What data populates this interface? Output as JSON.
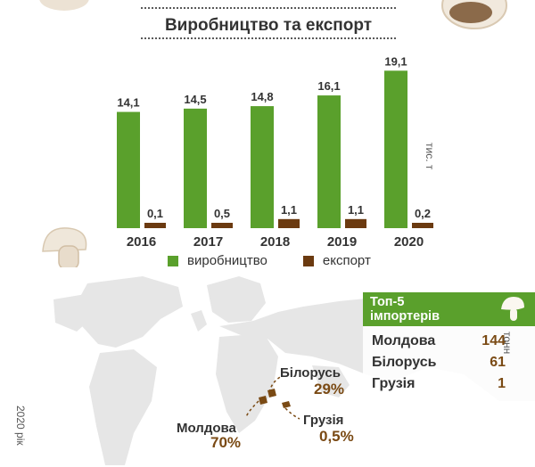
{
  "title": "Виробництво та експорт",
  "unit_label": "тис. т",
  "colors": {
    "production": "#5aa02c",
    "export": "#6b3a10",
    "map_land": "#e6e6e6",
    "map_highlight": "#7a4a14"
  },
  "legend": {
    "production": "виробництво",
    "export": "експорт"
  },
  "chart_data": {
    "type": "bar",
    "categories": [
      "2016",
      "2017",
      "2018",
      "2019",
      "2020"
    ],
    "series": [
      {
        "name": "виробництво",
        "values": [
          14.1,
          14.5,
          14.8,
          16.1,
          19.1
        ],
        "labels": [
          "14,1",
          "14,5",
          "14,8",
          "16,1",
          "19,1"
        ]
      },
      {
        "name": "експорт",
        "values": [
          0.1,
          0.5,
          1.1,
          1.1,
          0.2
        ],
        "labels": [
          "0,1",
          "0,5",
          "1,1",
          "1,1",
          "0,2"
        ]
      }
    ],
    "ylabel": "тис. т",
    "ylim": [
      0,
      20
    ],
    "grid": false,
    "legend_position": "bottom"
  },
  "importers": {
    "title_line1": "Топ-5",
    "title_line2": "імпортерів",
    "unit": "тонн",
    "rows": [
      {
        "country": "Молдова",
        "value": "144"
      },
      {
        "country": "Білорусь",
        "value": "61"
      },
      {
        "country": "Грузія",
        "value": "1"
      }
    ]
  },
  "map_labels": {
    "belarus": {
      "name": "Білорусь",
      "share": "29%"
    },
    "moldova": {
      "name": "Молдова",
      "share": "70%"
    },
    "georgia": {
      "name": "Грузія",
      "share": "0,5%"
    }
  },
  "year_note": "2020 рік"
}
